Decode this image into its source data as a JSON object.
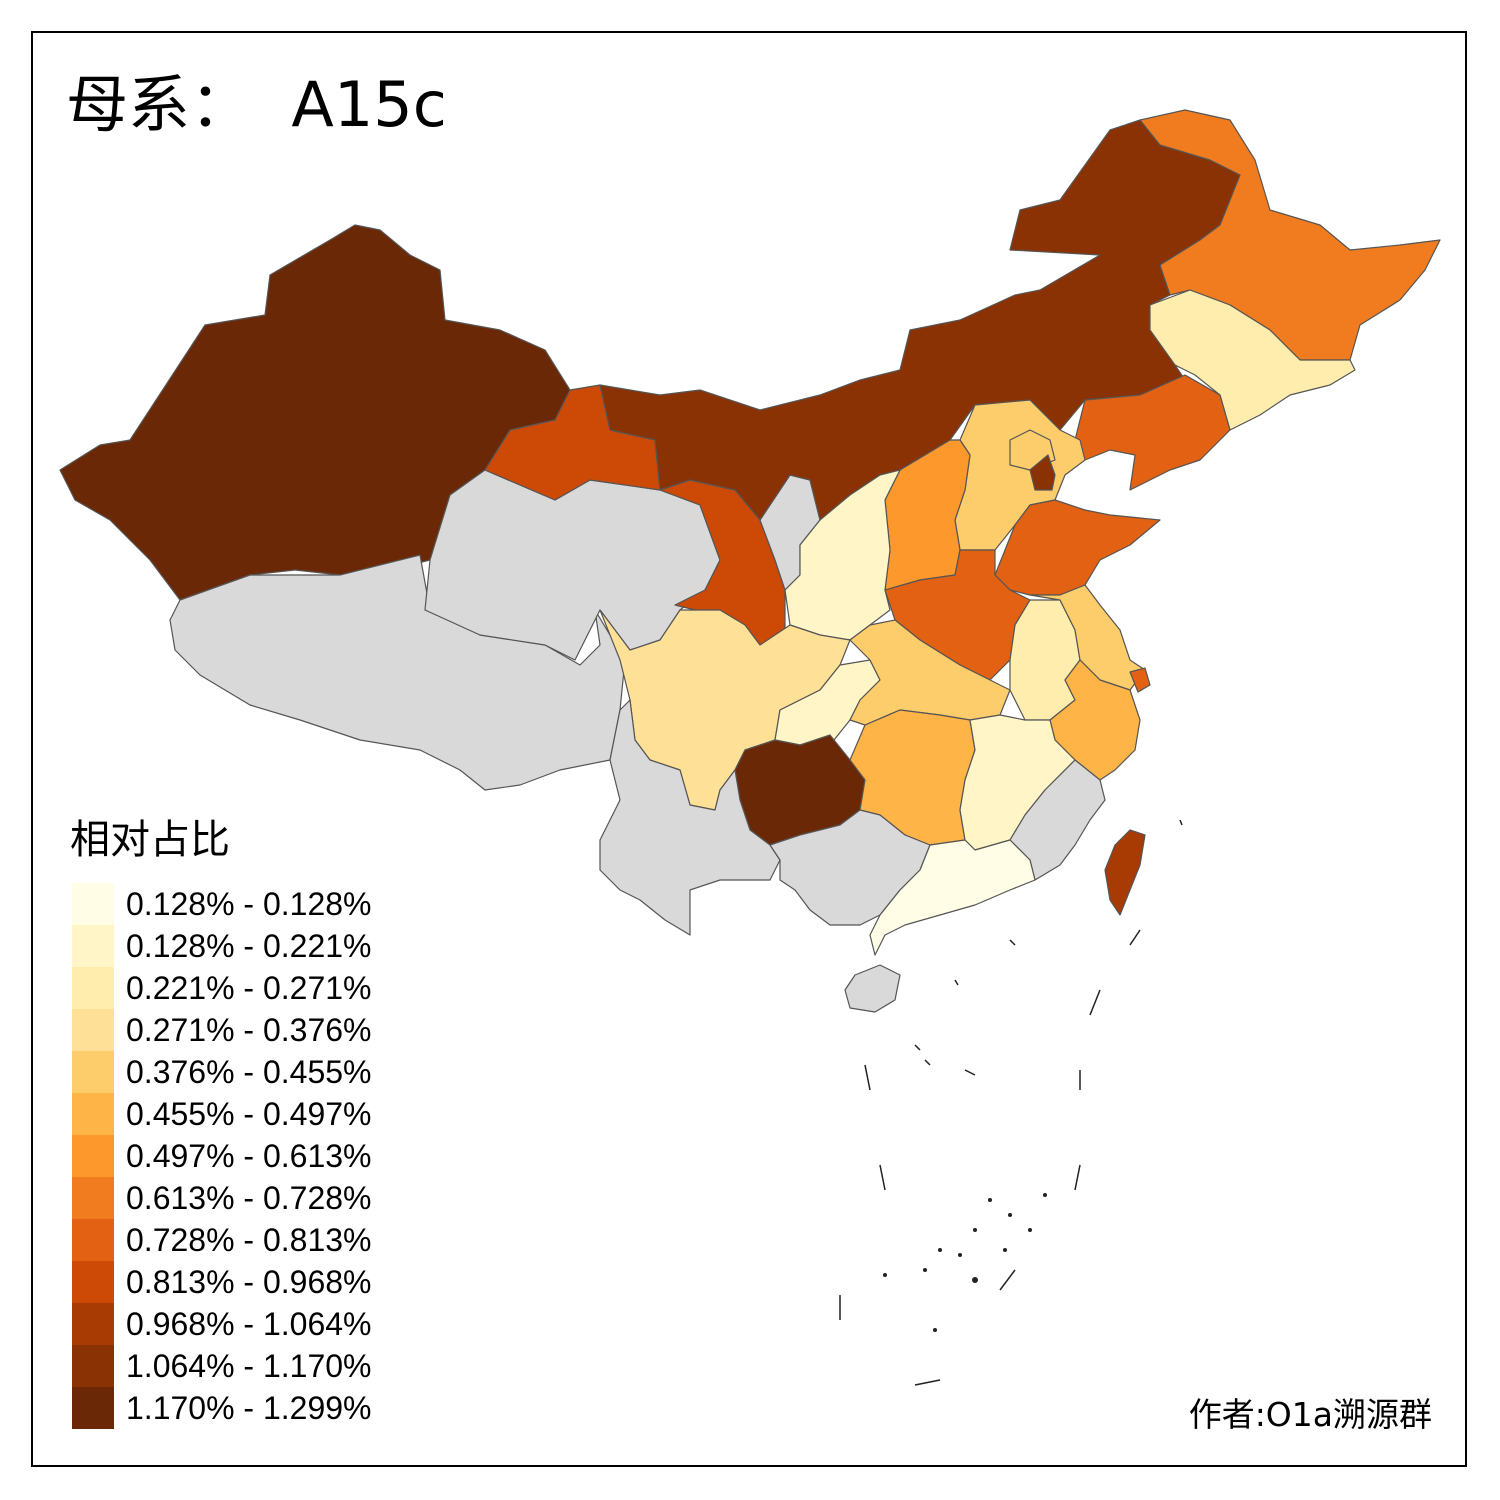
{
  "title": "母系：  A15c",
  "legend": {
    "title": "相对占比",
    "bins": [
      {
        "label": "0.128% - 0.128%",
        "color": "#fffde6"
      },
      {
        "label": "0.128% - 0.221%",
        "color": "#fff5c6"
      },
      {
        "label": "0.221% - 0.271%",
        "color": "#ffedae"
      },
      {
        "label": "0.271% - 0.376%",
        "color": "#fee197"
      },
      {
        "label": "0.376% - 0.455%",
        "color": "#fecd6b"
      },
      {
        "label": "0.455% - 0.497%",
        "color": "#feb447"
      },
      {
        "label": "0.497% - 0.613%",
        "color": "#fd982d"
      },
      {
        "label": "0.613% - 0.728%",
        "color": "#f17c1f"
      },
      {
        "label": "0.728% - 0.813%",
        "color": "#e26112"
      },
      {
        "label": "0.813% - 0.968%",
        "color": "#cc4a06"
      },
      {
        "label": "0.968% - 1.064%",
        "color": "#a83a04"
      },
      {
        "label": "1.064% - 1.170%",
        "color": "#8a3204"
      },
      {
        "label": "1.170% - 1.299%",
        "color": "#6b2806"
      }
    ]
  },
  "no_data_color": "#d9d9d9",
  "author": "作者:O1a溯源群",
  "regions": [
    {
      "id": "xinjiang",
      "bin": 12
    },
    {
      "id": "tibet",
      "bin": -1
    },
    {
      "id": "qinghai",
      "bin": -1
    },
    {
      "id": "gansu",
      "bin": 9
    },
    {
      "id": "ningxia",
      "bin": -1
    },
    {
      "id": "inner-mongolia",
      "bin": 11
    },
    {
      "id": "heilongjiang",
      "bin": 7
    },
    {
      "id": "jilin",
      "bin": 2
    },
    {
      "id": "liaoning",
      "bin": 8
    },
    {
      "id": "beijing",
      "bin": 4
    },
    {
      "id": "tianjin",
      "bin": 11
    },
    {
      "id": "hebei",
      "bin": 4
    },
    {
      "id": "shanxi",
      "bin": 6
    },
    {
      "id": "shandong",
      "bin": 8
    },
    {
      "id": "henan",
      "bin": 8
    },
    {
      "id": "shaanxi",
      "bin": 1
    },
    {
      "id": "sichuan",
      "bin": 3
    },
    {
      "id": "chongqing",
      "bin": 1
    },
    {
      "id": "hubei",
      "bin": 4
    },
    {
      "id": "anhui",
      "bin": 2
    },
    {
      "id": "jiangsu",
      "bin": 4
    },
    {
      "id": "shanghai",
      "bin": 8
    },
    {
      "id": "zhejiang",
      "bin": 5
    },
    {
      "id": "jiangxi",
      "bin": 1
    },
    {
      "id": "hunan",
      "bin": 5
    },
    {
      "id": "guizhou",
      "bin": 12
    },
    {
      "id": "yunnan",
      "bin": -1
    },
    {
      "id": "guangxi",
      "bin": -1
    },
    {
      "id": "guangdong",
      "bin": 0
    },
    {
      "id": "fujian",
      "bin": -1
    },
    {
      "id": "taiwan",
      "bin": 10
    },
    {
      "id": "hainan",
      "bin": -1
    }
  ]
}
